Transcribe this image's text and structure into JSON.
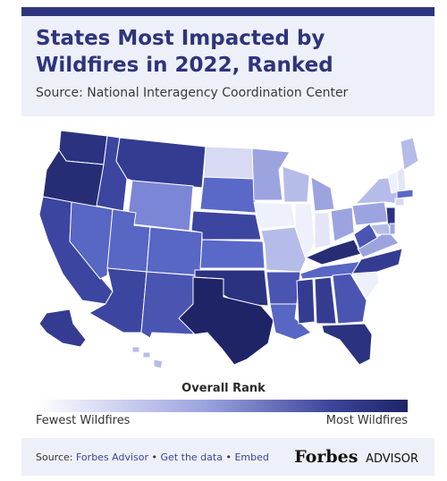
{
  "header": {
    "title": "States Most Impacted by Wildfires in 2022, Ranked",
    "source": "Source: National Interagency Coordination Center"
  },
  "legend": {
    "title": "Overall Rank",
    "low_label": "Fewest Wildfires",
    "high_label": "Most Wildfires",
    "color_low": "#ffffff",
    "color_high": "#1e2466"
  },
  "footer": {
    "source_prefix": "Source:",
    "source_link": "Forbes Advisor",
    "separator": "•",
    "data_link": "Get the data",
    "embed_link": "Embed",
    "brand": "Forbes",
    "brand_sub": "ADVISOR"
  },
  "colors": {
    "brand_navy": "#2e347c",
    "panel_bg": "#eef0f9"
  }
}
